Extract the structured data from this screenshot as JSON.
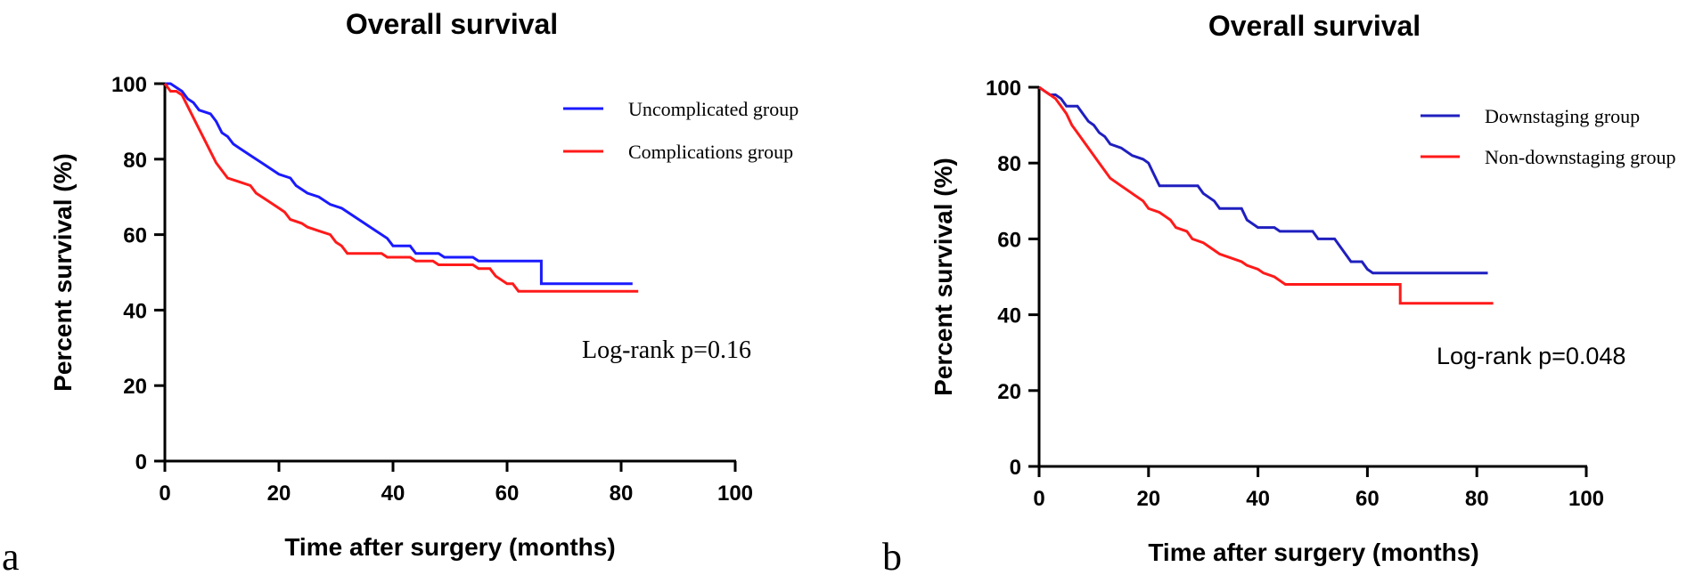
{
  "chart_data": [
    {
      "type": "line",
      "subtype": "kaplan-meier",
      "panel_label": "a",
      "title": "Overall survival",
      "xlabel": "Time after surgery (months)",
      "ylabel": "Percent survival (%)",
      "xlim": [
        0,
        100
      ],
      "ylim": [
        0,
        100
      ],
      "xticks": [
        "0",
        "20",
        "40",
        "60",
        "80",
        "100"
      ],
      "yticks": [
        "0",
        "20",
        "40",
        "60",
        "80",
        "100"
      ],
      "legend_position": "top-right",
      "annotation": "Log-rank p=0.16",
      "series": [
        {
          "name": "Uncomplicated group",
          "color": "#1a1aff",
          "points": [
            [
              0,
              100
            ],
            [
              1,
              100
            ],
            [
              2,
              99
            ],
            [
              3,
              98
            ],
            [
              4,
              96
            ],
            [
              5,
              95
            ],
            [
              6,
              93
            ],
            [
              8,
              92
            ],
            [
              9,
              90
            ],
            [
              10,
              87
            ],
            [
              11,
              86
            ],
            [
              12,
              84
            ],
            [
              13,
              83
            ],
            [
              15,
              81
            ],
            [
              17,
              79
            ],
            [
              18,
              78
            ],
            [
              20,
              76
            ],
            [
              22,
              75
            ],
            [
              23,
              73
            ],
            [
              25,
              71
            ],
            [
              27,
              70
            ],
            [
              29,
              68
            ],
            [
              31,
              67
            ],
            [
              33,
              65
            ],
            [
              35,
              63
            ],
            [
              37,
              61
            ],
            [
              39,
              59
            ],
            [
              40,
              57
            ],
            [
              43,
              57
            ],
            [
              44,
              55
            ],
            [
              48,
              55
            ],
            [
              49,
              54
            ],
            [
              54,
              54
            ],
            [
              55,
              53
            ],
            [
              66,
              53
            ],
            [
              66,
              47
            ],
            [
              82,
              47
            ]
          ]
        },
        {
          "name": "Complications group",
          "color": "#ff1a1a",
          "points": [
            [
              0,
              100
            ],
            [
              1,
              98
            ],
            [
              2,
              98
            ],
            [
              3,
              97
            ],
            [
              4,
              94
            ],
            [
              5,
              91
            ],
            [
              6,
              88
            ],
            [
              7,
              85
            ],
            [
              8,
              82
            ],
            [
              9,
              79
            ],
            [
              10,
              77
            ],
            [
              11,
              75
            ],
            [
              13,
              74
            ],
            [
              15,
              73
            ],
            [
              16,
              71
            ],
            [
              18,
              69
            ],
            [
              20,
              67
            ],
            [
              21,
              66
            ],
            [
              22,
              64
            ],
            [
              24,
              63
            ],
            [
              25,
              62
            ],
            [
              27,
              61
            ],
            [
              29,
              60
            ],
            [
              30,
              58
            ],
            [
              31,
              57
            ],
            [
              32,
              55
            ],
            [
              38,
              55
            ],
            [
              39,
              54
            ],
            [
              43,
              54
            ],
            [
              44,
              53
            ],
            [
              47,
              53
            ],
            [
              48,
              52
            ],
            [
              54,
              52
            ],
            [
              55,
              51
            ],
            [
              57,
              51
            ],
            [
              58,
              49
            ],
            [
              60,
              47
            ],
            [
              61,
              47
            ],
            [
              62,
              45
            ],
            [
              83,
              45
            ]
          ]
        }
      ]
    },
    {
      "type": "line",
      "subtype": "kaplan-meier",
      "panel_label": "b",
      "title": "Overall survival",
      "xlabel": "Time after surgery (months)",
      "ylabel": "Percent survival (%)",
      "xlim": [
        0,
        100
      ],
      "ylim": [
        0,
        100
      ],
      "xticks": [
        "0",
        "20",
        "40",
        "60",
        "80",
        "100"
      ],
      "yticks": [
        "0",
        "20",
        "40",
        "60",
        "80",
        "100"
      ],
      "legend_position": "top-right",
      "annotation": "Log-rank p=0.048",
      "series": [
        {
          "name": "Downstaging group",
          "color": "#1f1fbf",
          "points": [
            [
              0,
              100
            ],
            [
              1,
              99
            ],
            [
              2,
              98
            ],
            [
              3,
              98
            ],
            [
              4,
              97
            ],
            [
              5,
              95
            ],
            [
              7,
              95
            ],
            [
              8,
              93
            ],
            [
              9,
              91
            ],
            [
              10,
              90
            ],
            [
              11,
              88
            ],
            [
              12,
              87
            ],
            [
              13,
              85
            ],
            [
              15,
              84
            ],
            [
              17,
              82
            ],
            [
              19,
              81
            ],
            [
              20,
              80
            ],
            [
              21,
              77
            ],
            [
              22,
              74
            ],
            [
              29,
              74
            ],
            [
              30,
              72
            ],
            [
              32,
              70
            ],
            [
              33,
              68
            ],
            [
              37,
              68
            ],
            [
              38,
              65
            ],
            [
              40,
              63
            ],
            [
              43,
              63
            ],
            [
              44,
              62
            ],
            [
              50,
              62
            ],
            [
              51,
              60
            ],
            [
              54,
              60
            ],
            [
              55,
              58
            ],
            [
              56,
              56
            ],
            [
              57,
              54
            ],
            [
              59,
              54
            ],
            [
              60,
              52
            ],
            [
              61,
              51
            ],
            [
              82,
              51
            ]
          ]
        },
        {
          "name": "Non-downstaging group",
          "color": "#ff1a1a",
          "points": [
            [
              0,
              100
            ],
            [
              1,
              99
            ],
            [
              2,
              98
            ],
            [
              3,
              97
            ],
            [
              4,
              95
            ],
            [
              5,
              93
            ],
            [
              6,
              90
            ],
            [
              7,
              88
            ],
            [
              8,
              86
            ],
            [
              9,
              84
            ],
            [
              10,
              82
            ],
            [
              11,
              80
            ],
            [
              12,
              78
            ],
            [
              13,
              76
            ],
            [
              15,
              74
            ],
            [
              17,
              72
            ],
            [
              19,
              70
            ],
            [
              20,
              68
            ],
            [
              22,
              67
            ],
            [
              23,
              66
            ],
            [
              24,
              65
            ],
            [
              25,
              63
            ],
            [
              27,
              62
            ],
            [
              28,
              60
            ],
            [
              30,
              59
            ],
            [
              31,
              58
            ],
            [
              33,
              56
            ],
            [
              35,
              55
            ],
            [
              37,
              54
            ],
            [
              38,
              53
            ],
            [
              40,
              52
            ],
            [
              41,
              51
            ],
            [
              43,
              50
            ],
            [
              44,
              49
            ],
            [
              45,
              48
            ],
            [
              66,
              48
            ],
            [
              66,
              43
            ],
            [
              83,
              43
            ]
          ]
        }
      ]
    }
  ]
}
